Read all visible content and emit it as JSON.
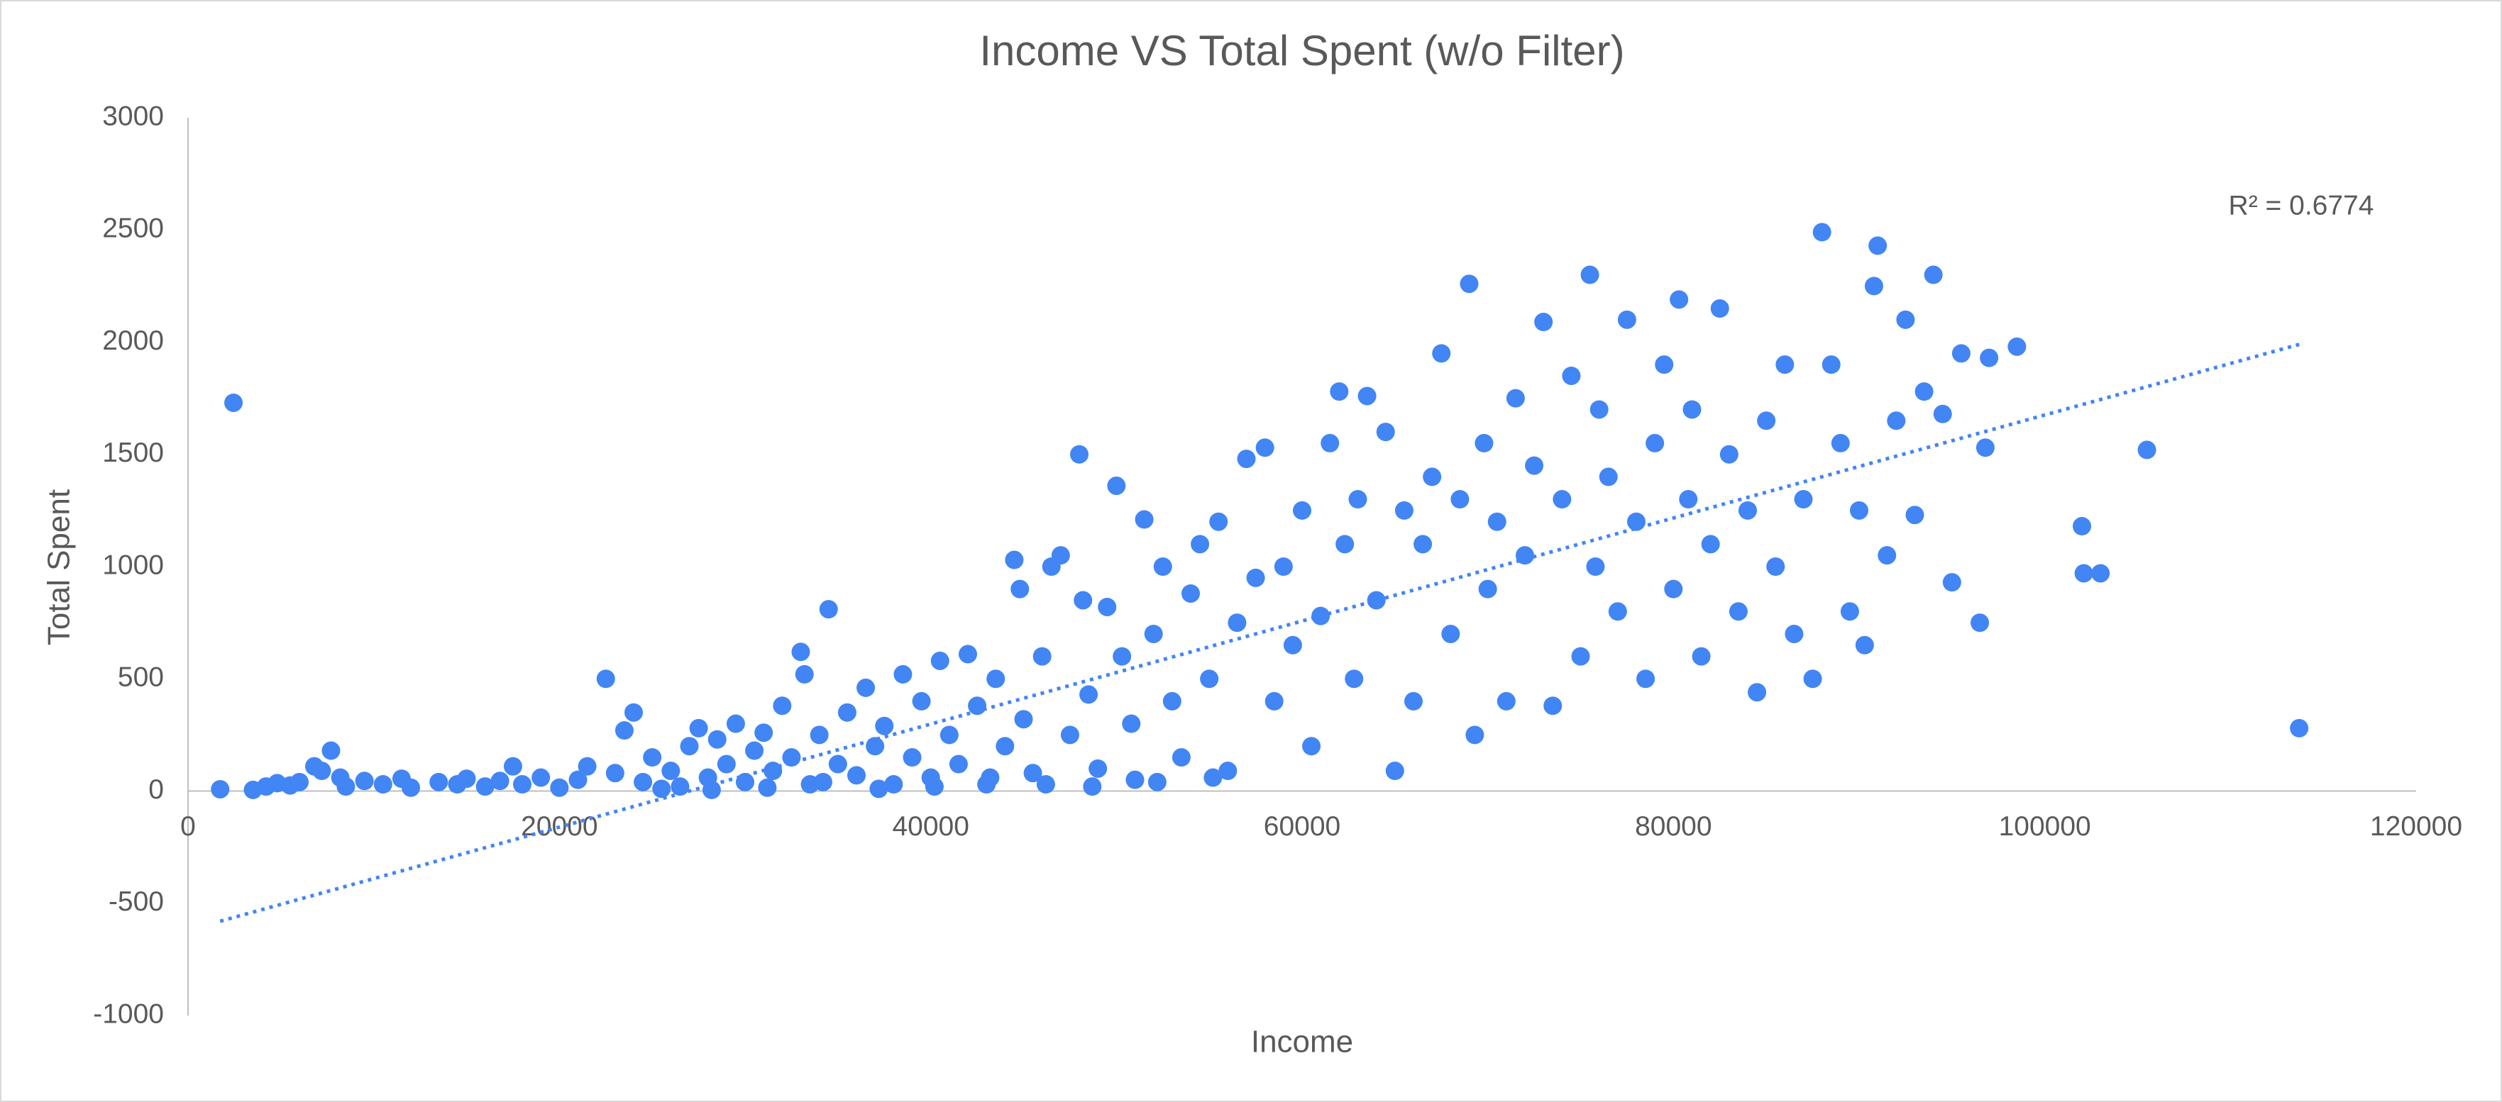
{
  "chart_data": {
    "type": "scatter",
    "title": "Income VS Total Spent (w/o Filter)",
    "x_label": "Income",
    "y_label": "Total Spent",
    "color": "#4285f4",
    "x": [
      1730,
      2447,
      3500,
      4200,
      4800,
      5500,
      6000,
      6800,
      7200,
      7700,
      8200,
      8500,
      9500,
      10500,
      11500,
      12000,
      13500,
      14500,
      15000,
      16000,
      16800,
      17500,
      18000,
      19000,
      20000,
      21000,
      21500,
      22500,
      23000,
      23500,
      24000,
      24500,
      25000,
      26000,
      26500,
      27000,
      27500,
      28000,
      28500,
      29000,
      29500,
      30000,
      30500,
      31000,
      31500,
      32000,
      32500,
      33000,
      33200,
      33500,
      34000,
      34500,
      35000,
      35500,
      36000,
      36500,
      37000,
      37500,
      38000,
      38500,
      39000,
      39500,
      40000,
      40500,
      41000,
      41500,
      42000,
      42500,
      43000,
      43500,
      44000,
      44500,
      44800,
      45000,
      45500,
      46000,
      46500,
      47000,
      47500,
      48000,
      48200,
      48500,
      49000,
      49500,
      50000,
      50300,
      50800,
      51000,
      51500,
      52000,
      52500,
      53000,
      53500,
      54000,
      54500,
      55000,
      55500,
      56000,
      56500,
      57000,
      57500,
      58000,
      58500,
      59000,
      59500,
      60000,
      60500,
      61000,
      61500,
      62000,
      62300,
      62800,
      63000,
      63500,
      64000,
      64500,
      65000,
      65500,
      66000,
      66500,
      67000,
      67500,
      68000,
      68500,
      69000,
      69300,
      69800,
      70000,
      70500,
      71000,
      71500,
      72000,
      72500,
      73000,
      73500,
      74000,
      74500,
      75000,
      75500,
      75800,
      76000,
      76500,
      77000,
      77500,
      78000,
      78500,
      79000,
      79500,
      80000,
      80300,
      80800,
      81000,
      81500,
      82000,
      82500,
      83000,
      83500,
      84000,
      84500,
      85000,
      85500,
      86000,
      86500,
      87000,
      87500,
      88000,
      88500,
      89000,
      89500,
      90000,
      90300,
      90800,
      91000,
      91500,
      92000,
      92500,
      93000,
      93500,
      94000,
      94500,
      95000,
      95500,
      96500,
      96800,
      97000,
      98500,
      102000,
      102100,
      103000,
      105500,
      113700,
      25500,
      28200,
      31200,
      34200,
      37200,
      40200,
      43200,
      46200,
      48700,
      52200,
      55200
    ],
    "values": [
      8,
      1730,
      5,
      20,
      35,
      25,
      40,
      110,
      90,
      180,
      60,
      20,
      45,
      30,
      55,
      15,
      40,
      30,
      55,
      20,
      45,
      110,
      30,
      60,
      15,
      50,
      110,
      500,
      80,
      270,
      350,
      40,
      150,
      90,
      20,
      200,
      280,
      60,
      230,
      120,
      300,
      40,
      180,
      260,
      90,
      380,
      150,
      620,
      520,
      30,
      250,
      810,
      120,
      350,
      70,
      460,
      200,
      290,
      30,
      520,
      150,
      400,
      60,
      580,
      250,
      120,
      610,
      380,
      30,
      500,
      200,
      1030,
      900,
      320,
      80,
      600,
      1000,
      1050,
      250,
      1500,
      850,
      430,
      100,
      820,
      1360,
      600,
      300,
      50,
      1210,
      700,
      1000,
      400,
      150,
      880,
      1100,
      500,
      1200,
      90,
      750,
      1480,
      950,
      1530,
      400,
      1000,
      650,
      1250,
      200,
      780,
      1550,
      1780,
      1100,
      500,
      1300,
      1760,
      850,
      1600,
      90,
      1250,
      400,
      1100,
      1400,
      1950,
      700,
      1300,
      2260,
      250,
      1550,
      900,
      1200,
      400,
      1750,
      1050,
      1450,
      2090,
      380,
      1300,
      1850,
      600,
      2300,
      1000,
      1700,
      1400,
      800,
      2100,
      1200,
      500,
      1550,
      1900,
      900,
      2190,
      1300,
      1700,
      600,
      1100,
      2150,
      1500,
      800,
      1250,
      440,
      1650,
      1000,
      1900,
      700,
      1300,
      500,
      2490,
      1900,
      1550,
      800,
      1250,
      650,
      2250,
      2430,
      1050,
      1650,
      2100,
      1230,
      1780,
      2300,
      1680,
      930,
      1950,
      750,
      1530,
      1930,
      1980,
      1180,
      970,
      970,
      1520,
      280,
      10,
      5,
      15,
      40,
      10,
      20,
      60,
      30,
      20,
      40,
      60
    ],
    "trendline": {
      "x": [
        1730,
        113700
      ],
      "y": [
        -580,
        1990
      ],
      "label": "R² = 0.6774"
    },
    "xlim": [
      0,
      120000
    ],
    "xticks": [
      0,
      20000,
      40000,
      60000,
      80000,
      100000,
      120000
    ],
    "ylim": [
      -1000,
      3000
    ],
    "yticks": [
      -1000,
      -500,
      0,
      500,
      1000,
      1500,
      2000,
      2500,
      3000
    ],
    "grid": false
  }
}
